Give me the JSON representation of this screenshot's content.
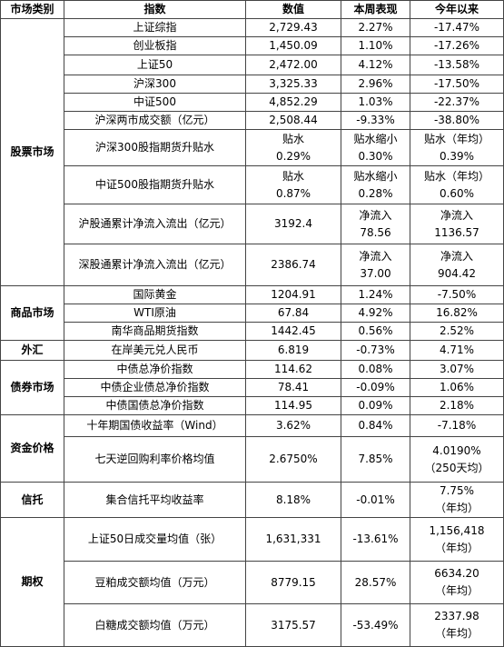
{
  "header": [
    "市场类别",
    "指数",
    "数值",
    "本周表现",
    "今年以来"
  ],
  "groups": [
    {
      "category": "股票市场",
      "rows": [
        [
          "上证综指",
          "2,729.43",
          "2.27%",
          "-17.47%"
        ],
        [
          "创业板指",
          "1,450.09",
          "1.10%",
          "-17.26%"
        ],
        [
          "上证50",
          "2,472.00",
          "4.12%",
          "-13.58%"
        ],
        [
          "沪深300",
          "3,325.33",
          "2.96%",
          "-17.50%"
        ],
        [
          "中证500",
          "4,852.29",
          "1.03%",
          "-22.37%"
        ],
        [
          "沪深两市成交额（亿元）",
          "2,508.44",
          "-9.33%",
          "-38.80%"
        ],
        [
          "沪深300股指期货升贴水",
          "贴水\n0.29%",
          "贴水缩小\n0.30%",
          "贴水（年均）\n0.39%"
        ],
        [
          "中证500股指期货升贴水",
          "贴水\n0.87%",
          "贴水缩小\n0.28%",
          "贴水（年均）\n0.60%"
        ],
        [
          "沪股通累计净流入流出（亿元）",
          "3192.4",
          "净流入\n78.56",
          "净流入\n1136.57"
        ],
        [
          "深股通累计净流入流出（亿元）",
          "2386.74",
          "净流入\n37.00",
          "净流入\n904.42"
        ]
      ]
    },
    {
      "category": "商品市场",
      "rows": [
        [
          "国际黄金",
          "1204.91",
          "1.24%",
          "-7.50%"
        ],
        [
          "WTI原油",
          "67.84",
          "4.92%",
          "16.82%"
        ],
        [
          "南华商品期货指数",
          "1442.45",
          "0.56%",
          "2.52%"
        ]
      ]
    },
    {
      "category": "外汇",
      "rows": [
        [
          "在岸美元兑人民币",
          "6.819",
          "-0.73%",
          "4.71%"
        ]
      ]
    },
    {
      "category": "债券市场",
      "rows": [
        [
          "中债总净价指数",
          "114.62",
          "0.08%",
          "3.07%"
        ],
        [
          "中债企业债总净价指数",
          "78.41",
          "-0.09%",
          "1.06%"
        ],
        [
          "中债国债总净价指数",
          "114.95",
          "0.09%",
          "2.18%"
        ]
      ]
    },
    {
      "category": "资金价格",
      "rows": [
        [
          "十年期国债收益率（Wind）",
          "3.62%",
          "0.84%",
          "-7.18%"
        ],
        [
          "七天逆回购利率价格均值",
          "2.6750%",
          "7.85%",
          "4.0190%\n（250天均）"
        ]
      ]
    },
    {
      "category": "信托",
      "rows": [
        [
          "集合信托平均收益率",
          "8.18%",
          "-0.01%",
          "7.75%\n（年均）"
        ]
      ]
    },
    {
      "category": "期权",
      "rows": [
        [
          "上证50日成交量均值（张）",
          "1,631,331",
          "-13.61%",
          "1,156,418\n（年均）"
        ],
        [
          "豆粕成交额均值（万元）",
          "8779.15",
          "28.57%",
          "6634.20\n（年均）"
        ],
        [
          "白糖成交额均值（万元）",
          "3175.57",
          "-53.49%",
          "2337.98\n（年均）"
        ]
      ]
    }
  ]
}
